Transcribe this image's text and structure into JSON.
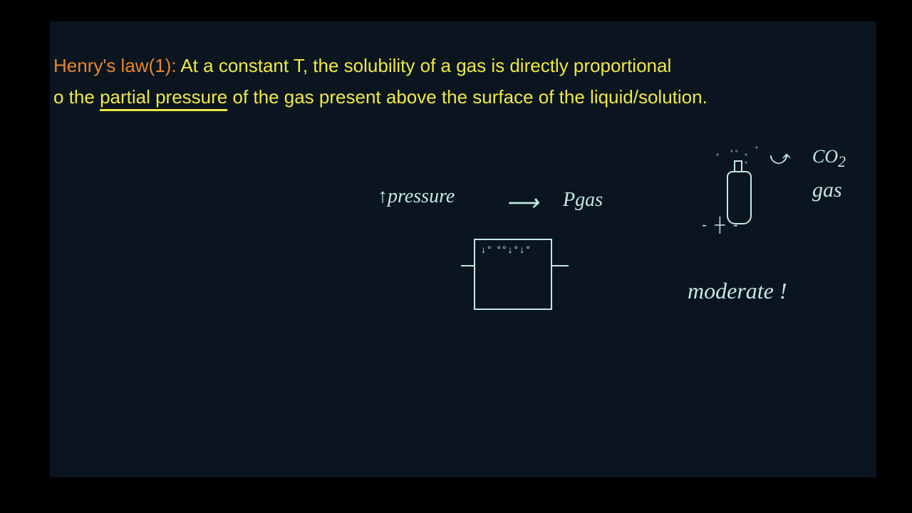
{
  "heading": {
    "title": "Henry's law(1): ",
    "body_line1": "At a constant T, the solubility of a gas is directly proportional",
    "body_line2_pre": "o the ",
    "body_line2_underlined": "partial pressure",
    "body_line2_post": " of the gas present above the surface of the liquid/solution."
  },
  "handwriting": {
    "pressure": "↑pressure",
    "pgas": "Pgas",
    "co2": "CO",
    "co2_sub": "2",
    "gas": "gas",
    "moderate": "moderate !",
    "particles": "↓° °°↓°↓°"
  },
  "colors": {
    "background": "#000000",
    "content_bg": "#0a1520",
    "title": "#e8862e",
    "body": "#f0e844",
    "handwriting": "#c5e8e0"
  },
  "typography": {
    "heading_size": 26,
    "handwriting_size": 28
  }
}
